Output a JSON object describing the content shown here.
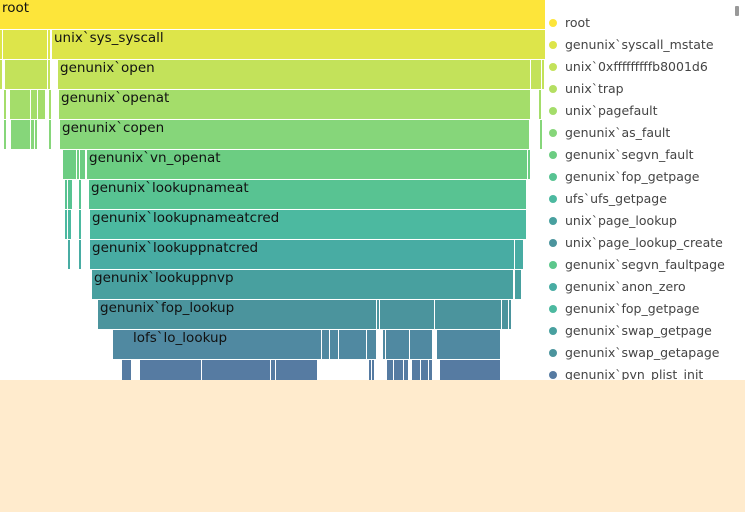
{
  "chart_data": {
    "type": "flamegraph",
    "x_total": 545,
    "rows": [
      [
        {
          "s": 0,
          "w": 545,
          "label": "root",
          "color": "#fde53a"
        }
      ],
      [
        {
          "s": 0,
          "w": 2,
          "color": "#dde54a"
        },
        {
          "s": 3,
          "w": 2,
          "color": "#dde54a"
        },
        {
          "s": 5,
          "w": 42,
          "color": "#dde54a"
        },
        {
          "s": 48,
          "w": 2,
          "color": "#dde54a"
        },
        {
          "s": 52,
          "w": 493,
          "label": "unix`sys_syscall",
          "color": "#dde54a"
        }
      ],
      [
        {
          "s": 0,
          "w": 2,
          "color": "#c3e25a"
        },
        {
          "s": 5,
          "w": 42,
          "color": "#c3e25a"
        },
        {
          "s": 48,
          "w": 2,
          "color": "#c3e25a"
        },
        {
          "s": 58,
          "w": 472,
          "label": "genunix`open",
          "color": "#c3e25a"
        },
        {
          "s": 531,
          "w": 10,
          "color": "#c3e25a"
        },
        {
          "s": 542,
          "w": 2,
          "color": "#c3e25a"
        }
      ],
      [
        {
          "s": 4,
          "w": 2,
          "color": "#a4dd6a"
        },
        {
          "s": 10,
          "w": 20,
          "color": "#a4dd6a"
        },
        {
          "s": 31,
          "w": 6,
          "color": "#a4dd6a"
        },
        {
          "s": 38,
          "w": 7,
          "color": "#a4dd6a"
        },
        {
          "s": 49,
          "w": 2,
          "color": "#a4dd6a"
        },
        {
          "s": 59,
          "w": 471,
          "label": "genunix`openat",
          "color": "#a4dd6a"
        },
        {
          "s": 539,
          "w": 2,
          "color": "#a4dd6a"
        }
      ],
      [
        {
          "s": 4,
          "w": 2,
          "color": "#86d67a"
        },
        {
          "s": 11,
          "w": 19,
          "color": "#86d67a"
        },
        {
          "s": 31,
          "w": 3,
          "color": "#86d67a"
        },
        {
          "s": 35,
          "w": 2,
          "color": "#86d67a"
        },
        {
          "s": 49,
          "w": 2,
          "color": "#86d67a"
        },
        {
          "s": 60,
          "w": 469,
          "label": "genunix`copen",
          "color": "#86d67a"
        },
        {
          "s": 540,
          "w": 2,
          "color": "#86d67a"
        }
      ],
      [
        {
          "s": 63,
          "w": 13,
          "color": "#6ccd82"
        },
        {
          "s": 77,
          "w": 2,
          "color": "#6ccd82"
        },
        {
          "s": 80,
          "w": 5,
          "color": "#6ccd82"
        },
        {
          "s": 87,
          "w": 440,
          "label": "genunix`vn_openat",
          "color": "#6ccd82"
        },
        {
          "s": 528,
          "w": 2,
          "color": "#6ccd82"
        }
      ],
      [
        {
          "s": 65,
          "w": 2,
          "color": "#58c392"
        },
        {
          "s": 68,
          "w": 4,
          "color": "#58c392"
        },
        {
          "s": 79,
          "w": 2,
          "color": "#58c392"
        },
        {
          "s": 89,
          "w": 437,
          "label": "genunix`lookupnameat",
          "color": "#58c392"
        }
      ],
      [
        {
          "s": 65,
          "w": 2,
          "color": "#4cb9a0"
        },
        {
          "s": 68,
          "w": 3,
          "color": "#4cb9a0"
        },
        {
          "s": 79,
          "w": 2,
          "color": "#4cb9a0"
        },
        {
          "s": 90,
          "w": 436,
          "label": "genunix`lookupnameatcred",
          "color": "#4cb9a0"
        }
      ],
      [
        {
          "s": 68,
          "w": 2,
          "color": "#48aca3"
        },
        {
          "s": 79,
          "w": 2,
          "color": "#48aca3"
        },
        {
          "s": 90,
          "w": 424,
          "label": "genunix`lookuppnatcred",
          "color": "#48aca3"
        },
        {
          "s": 515,
          "w": 6,
          "color": "#48aca3"
        },
        {
          "s": 521,
          "w": 2,
          "color": "#48aca3"
        }
      ],
      [
        {
          "s": 92,
          "w": 421,
          "label": "genunix`lookuppnvp",
          "color": "#48a09f"
        },
        {
          "s": 515,
          "w": 6,
          "color": "#48a09f"
        }
      ],
      [
        {
          "s": 98,
          "w": 278,
          "label": "genunix`fop_lookup",
          "color": "#4b949d"
        },
        {
          "s": 377,
          "w": 2,
          "color": "#4b949d"
        },
        {
          "s": 380,
          "w": 54,
          "color": "#4b949d"
        },
        {
          "s": 435,
          "w": 66,
          "color": "#4b949d"
        },
        {
          "s": 502,
          "w": 6,
          "color": "#4b949d"
        },
        {
          "s": 509,
          "w": 2,
          "color": "#4b949d"
        }
      ],
      [
        {
          "s": 113,
          "w": 18,
          "color": "#5089a1"
        },
        {
          "s": 131,
          "w": 190,
          "label": "lofs`lo_lookup",
          "color": "#5089a1"
        },
        {
          "s": 322,
          "w": 7,
          "color": "#5089a1"
        },
        {
          "s": 330,
          "w": 8,
          "color": "#5089a1"
        },
        {
          "s": 339,
          "w": 2,
          "color": "#5089a1"
        },
        {
          "s": 341,
          "w": 25,
          "color": "#5089a1"
        },
        {
          "s": 367,
          "w": 9,
          "color": "#5089a1"
        },
        {
          "s": 383,
          "w": 2,
          "color": "#5089a1"
        },
        {
          "s": 386,
          "w": 23,
          "color": "#5089a1"
        },
        {
          "s": 410,
          "w": 22,
          "color": "#5089a1"
        },
        {
          "s": 437,
          "w": 63,
          "color": "#5089a1"
        }
      ],
      [
        {
          "s": 122,
          "w": 9,
          "color": "#567ba2"
        },
        {
          "s": 140,
          "w": 61,
          "color": "#567ba2"
        },
        {
          "s": 202,
          "w": 68,
          "color": "#567ba2"
        },
        {
          "s": 271,
          "w": 2,
          "color": "#567ba2"
        },
        {
          "s": 273,
          "w": 2,
          "color": "#567ba2"
        },
        {
          "s": 276,
          "w": 41,
          "color": "#567ba2"
        },
        {
          "s": 369,
          "w": 2,
          "color": "#567ba2"
        },
        {
          "s": 372,
          "w": 2,
          "color": "#567ba2"
        },
        {
          "s": 387,
          "w": 6,
          "color": "#567ba2"
        },
        {
          "s": 394,
          "w": 9,
          "color": "#567ba2"
        },
        {
          "s": 404,
          "w": 4,
          "color": "#567ba2"
        },
        {
          "s": 412,
          "w": 8,
          "color": "#567ba2"
        },
        {
          "s": 421,
          "w": 7,
          "color": "#567ba2"
        },
        {
          "s": 429,
          "w": 3,
          "color": "#567ba2"
        },
        {
          "s": 440,
          "w": 60,
          "color": "#567ba2"
        }
      ]
    ],
    "legend": [
      {
        "label": "root",
        "color": "#fde53a"
      },
      {
        "label": "genunix`syscall_mstate",
        "color": "#dde54a"
      },
      {
        "label": "unix`0xfffffffffb8001d6",
        "color": "#c3e25a"
      },
      {
        "label": "unix`trap",
        "color": "#b4df62"
      },
      {
        "label": "unix`pagefault",
        "color": "#a4dd6a"
      },
      {
        "label": "genunix`as_fault",
        "color": "#86d67a"
      },
      {
        "label": "genunix`segvn_fault",
        "color": "#6ccd82"
      },
      {
        "label": "genunix`fop_getpage",
        "color": "#58c392"
      },
      {
        "label": "ufs`ufs_getpage",
        "color": "#4cb9a0"
      },
      {
        "label": "unix`page_lookup",
        "color": "#48a09f"
      },
      {
        "label": "unix`page_lookup_create",
        "color": "#4b949d"
      },
      {
        "label": "genunix`segvn_faultpage",
        "color": "#5cc78c"
      },
      {
        "label": "genunix`anon_zero",
        "color": "#48aca3"
      },
      {
        "label": "genunix`fop_getpage",
        "color": "#4cb9a0"
      },
      {
        "label": "genunix`swap_getpage",
        "color": "#48a09f"
      },
      {
        "label": "genunix`swap_getapage",
        "color": "#4b949d"
      },
      {
        "label": "genunix`pvn_plist_init",
        "color": "#567ba2"
      }
    ]
  }
}
